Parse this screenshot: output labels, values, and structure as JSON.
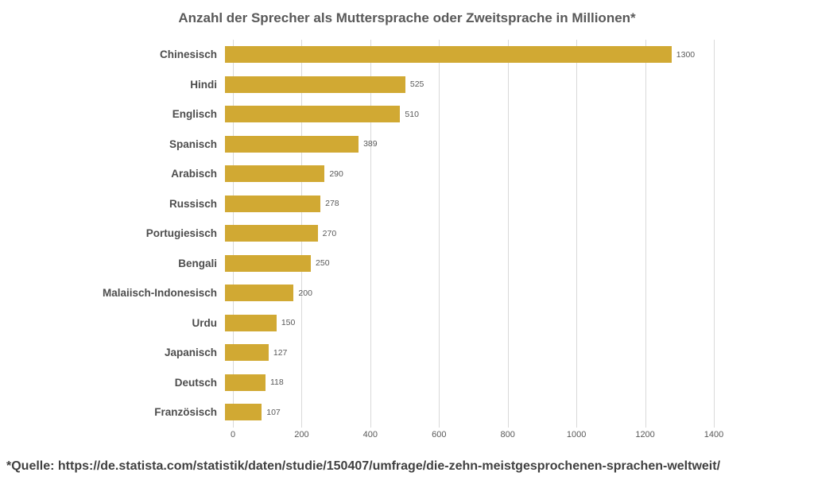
{
  "title": "Anzahl der Sprecher als Muttersprache oder Zweitsprache in Millionen*",
  "source_note": "*Quelle: https://de.statista.com/statistik/daten/studie/150407/umfrage/die-zehn-meistgesprochenen-sprachen-weltweit/",
  "chart_data": {
    "type": "bar",
    "orientation": "horizontal",
    "title": "Anzahl der Sprecher als Muttersprache oder Zweitsprache in Millionen*",
    "categories": [
      "Chinesisch",
      "Hindi",
      "Englisch",
      "Spanisch",
      "Arabisch",
      "Russisch",
      "Portugiesisch",
      "Bengali",
      "Malaiisch-Indonesisch",
      "Urdu",
      "Japanisch",
      "Deutsch",
      "Französisch"
    ],
    "values": [
      1300,
      525,
      510,
      389,
      290,
      278,
      270,
      250,
      200,
      150,
      127,
      118,
      107
    ],
    "xlabel": "",
    "ylabel": "",
    "xlim": [
      0,
      1400
    ],
    "x_ticks": [
      0,
      200,
      400,
      600,
      800,
      1000,
      1200,
      1400
    ],
    "grid": true,
    "legend": false,
    "bar_color": "#d1a933",
    "gridline_color": "#d9d9d9",
    "label_color": "#595959"
  }
}
